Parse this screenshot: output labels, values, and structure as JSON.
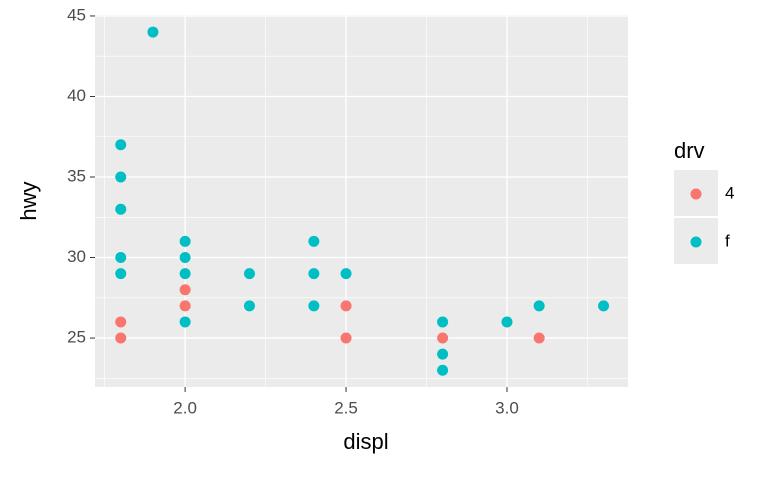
{
  "chart_data": {
    "type": "scatter",
    "x_label": "displ",
    "y_label": "hwy",
    "legend_title": "drv",
    "legend_position": "right",
    "grid": true,
    "xlim": [
      1.72,
      3.376
    ],
    "ylim": [
      21.96,
      45.06
    ],
    "xticks": [
      {
        "value": 2,
        "label": "2.0"
      },
      2.5,
      {
        "value": 3,
        "label": "3.0"
      }
    ],
    "yticks": [
      25,
      30,
      35,
      40,
      45
    ],
    "series": [
      {
        "name": "4",
        "color": "#f8766d",
        "x": [
          1.8,
          1.8,
          2.0,
          2.0,
          2.5,
          2.5,
          2.8,
          3.1
        ],
        "values": [
          26,
          25,
          28,
          27,
          27,
          25,
          25,
          25
        ]
      },
      {
        "name": "f",
        "color": "#00bfc4",
        "x": [
          1.9,
          1.8,
          1.8,
          1.8,
          1.8,
          1.8,
          2.0,
          2.0,
          2.0,
          2.0,
          2.2,
          2.2,
          2.4,
          2.4,
          2.4,
          2.5,
          2.8,
          2.8,
          2.8,
          3.0,
          3.1,
          3.3
        ],
        "values": [
          44,
          37,
          35,
          33,
          30,
          29,
          31,
          30,
          29,
          26,
          29,
          27,
          31,
          29,
          27,
          29,
          26,
          24,
          23,
          26,
          27,
          27
        ]
      }
    ]
  }
}
